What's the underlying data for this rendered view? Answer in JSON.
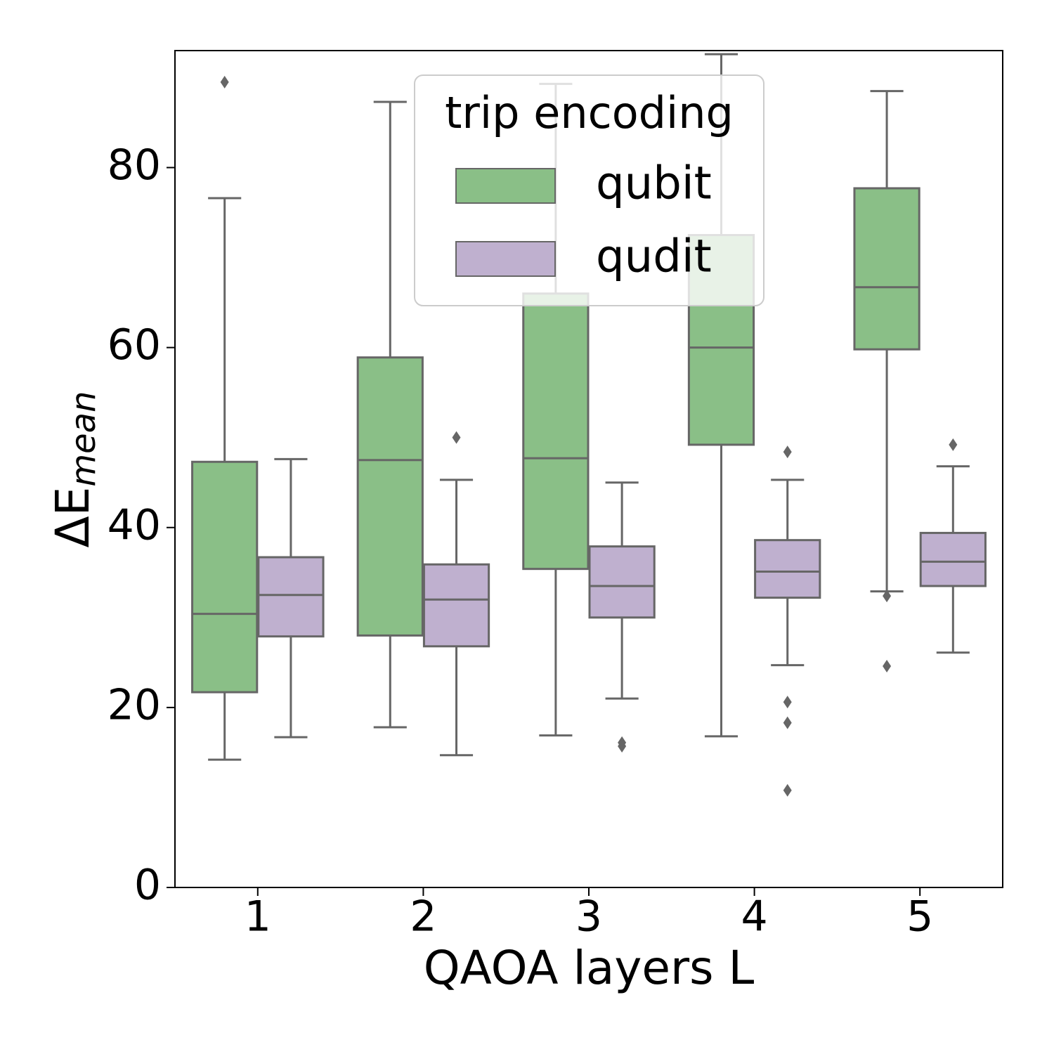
{
  "chart_data": {
    "type": "box",
    "xlabel": "QAOA layers L",
    "ylabel": "ΔE",
    "ylabel_subscript": "mean",
    "categories": [
      1,
      2,
      3,
      4,
      5
    ],
    "ylim": [
      0,
      93
    ],
    "yticks": [
      0,
      20,
      40,
      60,
      80
    ],
    "legend_title": "trip encoding",
    "legend_position": "upper center",
    "edge_color": "#666666",
    "series": [
      {
        "name": "qubit",
        "color": "#8abf87",
        "values": [
          {
            "min": 14.2,
            "q1": 21.7,
            "median": 30.4,
            "q3": 47.3,
            "max": 76.6,
            "outliers": [
              89.5
            ]
          },
          {
            "min": 17.8,
            "q1": 28.0,
            "median": 47.5,
            "q3": 58.9,
            "max": 87.3,
            "outliers": []
          },
          {
            "min": 16.9,
            "q1": 35.4,
            "median": 47.7,
            "q3": 66.0,
            "max": 89.3,
            "outliers": []
          },
          {
            "min": 16.8,
            "q1": 49.2,
            "median": 60.0,
            "q3": 72.5,
            "max": 92.6,
            "outliers": []
          },
          {
            "min": 32.9,
            "q1": 59.8,
            "median": 66.7,
            "q3": 77.7,
            "max": 88.5,
            "outliers": [
              32.4,
              24.6
            ]
          }
        ]
      },
      {
        "name": "qudit",
        "color": "#bfb0cf",
        "values": [
          {
            "min": 16.7,
            "q1": 27.9,
            "median": 32.5,
            "q3": 36.7,
            "max": 47.6,
            "outliers": []
          },
          {
            "min": 14.7,
            "q1": 26.8,
            "median": 32.0,
            "q3": 35.9,
            "max": 45.3,
            "outliers": [
              50.0
            ]
          },
          {
            "min": 21.0,
            "q1": 30.0,
            "median": 33.5,
            "q3": 37.9,
            "max": 45.0,
            "outliers": [
              16.1,
              15.7
            ]
          },
          {
            "min": 24.7,
            "q1": 32.2,
            "median": 35.1,
            "q3": 38.6,
            "max": 45.3,
            "outliers": [
              48.4,
              20.6,
              18.3,
              10.8
            ]
          },
          {
            "min": 26.1,
            "q1": 33.5,
            "median": 36.2,
            "q3": 39.4,
            "max": 46.8,
            "outliers": [
              49.2
            ]
          }
        ]
      }
    ]
  }
}
